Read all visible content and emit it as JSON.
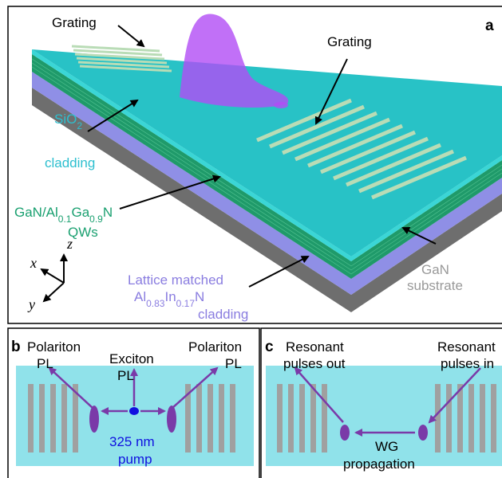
{
  "panel_a": {
    "label": "a",
    "grating_left": "Grating",
    "grating_right": "Grating",
    "cladding": {
      "formula": [
        "SiO",
        "2"
      ],
      "word": "cladding"
    },
    "qws": {
      "formula": [
        "GaN/Al",
        "0.1",
        "Ga",
        "0.9",
        "N"
      ],
      "word": "QWs"
    },
    "substrate": [
      "GaN",
      "substrate"
    ],
    "lattice": {
      "line1": "Lattice matched",
      "formula": [
        "Al",
        "0.83",
        "In",
        "0.17",
        "N"
      ],
      "word": "cladding"
    },
    "axes": [
      "x",
      "z",
      "y"
    ]
  },
  "panel_b": {
    "label": "b",
    "polariton_left": [
      "Polariton",
      "PL"
    ],
    "exciton": [
      "Exciton",
      "PL"
    ],
    "polariton_right": [
      "Polariton",
      "PL"
    ],
    "pump": [
      "325 nm",
      "pump"
    ]
  },
  "panel_c": {
    "label": "c",
    "out": [
      "Resonant",
      "pulses out"
    ],
    "in": [
      "Resonant",
      "pulses in"
    ],
    "wg": [
      "WG",
      "propagation"
    ]
  }
}
